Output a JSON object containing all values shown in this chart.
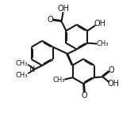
{
  "bg_color": "#ffffff",
  "line_color": "#1a1a1a",
  "bond_lw": 1.5,
  "dbo": 0.055,
  "fs": 7.0,
  "fs_small": 6.0,
  "figsize": [
    1.74,
    1.66
  ],
  "dpi": 100,
  "xlim": [
    0,
    10
  ],
  "ylim": [
    0,
    10
  ]
}
